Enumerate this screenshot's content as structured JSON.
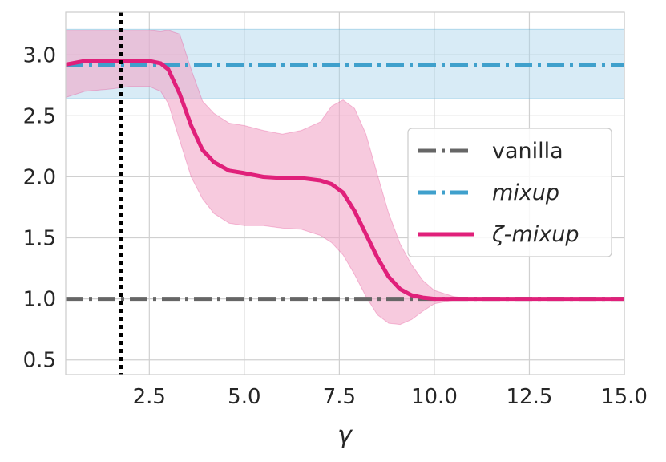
{
  "chart_data": {
    "type": "line",
    "xlabel": "γ",
    "ylabel": "",
    "xlim": [
      0.3,
      15.0
    ],
    "ylim": [
      0.38,
      3.35
    ],
    "x_ticks": [
      2.5,
      5.0,
      7.5,
      10.0,
      12.5,
      15.0
    ],
    "x_tick_labels": [
      "2.5",
      "5.0",
      "7.5",
      "10.0",
      "12.5",
      "15.0"
    ],
    "y_ticks": [
      0.5,
      1.0,
      1.5,
      2.0,
      2.5,
      3.0
    ],
    "y_tick_labels": [
      "0.5",
      "1.0",
      "1.5",
      "2.0",
      "2.5",
      "3.0"
    ],
    "grid": true,
    "legend_position": "center-right",
    "vertical_line": {
      "x": 1.75,
      "style": "dotted",
      "color": "#000000"
    },
    "series": [
      {
        "name": "vanilla",
        "italic": false,
        "style": "dashdot",
        "color": "#666666",
        "constant_y": 1.0
      },
      {
        "name": "mixup",
        "italic": true,
        "style": "dashdot",
        "color": "#3fa0cc",
        "band_color": "#a9d3ea",
        "constant_y": 2.92,
        "band_low": 2.64,
        "band_high": 3.21
      },
      {
        "name": "ζ-mixup",
        "italic": true,
        "style": "solid",
        "color": "#e0207a",
        "band_color": "#f1a7c8",
        "x": [
          0.3,
          0.8,
          1.5,
          2.0,
          2.5,
          2.8,
          3.0,
          3.3,
          3.6,
          3.9,
          4.2,
          4.6,
          5.0,
          5.5,
          6.0,
          6.5,
          7.0,
          7.3,
          7.6,
          7.9,
          8.2,
          8.5,
          8.8,
          9.1,
          9.4,
          9.7,
          10.0,
          10.5,
          11.0,
          12.0,
          13.0,
          14.0,
          15.0
        ],
        "y": [
          2.92,
          2.95,
          2.95,
          2.95,
          2.95,
          2.93,
          2.88,
          2.68,
          2.42,
          2.22,
          2.12,
          2.05,
          2.03,
          2.0,
          1.99,
          1.99,
          1.97,
          1.94,
          1.87,
          1.72,
          1.53,
          1.34,
          1.18,
          1.08,
          1.03,
          1.01,
          1.0,
          1.0,
          1.0,
          1.0,
          1.0,
          1.0,
          1.0
        ],
        "low": [
          2.65,
          2.7,
          2.72,
          2.74,
          2.74,
          2.7,
          2.6,
          2.3,
          2.0,
          1.82,
          1.7,
          1.62,
          1.6,
          1.6,
          1.58,
          1.57,
          1.52,
          1.46,
          1.36,
          1.2,
          1.02,
          0.87,
          0.8,
          0.79,
          0.83,
          0.9,
          0.96,
          0.99,
          1.0,
          1.0,
          1.0,
          1.0,
          1.0
        ],
        "high": [
          3.2,
          3.2,
          3.2,
          3.2,
          3.2,
          3.19,
          3.2,
          3.17,
          2.88,
          2.62,
          2.52,
          2.44,
          2.42,
          2.38,
          2.35,
          2.38,
          2.45,
          2.58,
          2.63,
          2.56,
          2.35,
          2.02,
          1.7,
          1.45,
          1.28,
          1.15,
          1.07,
          1.02,
          1.0,
          1.0,
          1.0,
          1.0,
          1.0
        ]
      }
    ]
  }
}
